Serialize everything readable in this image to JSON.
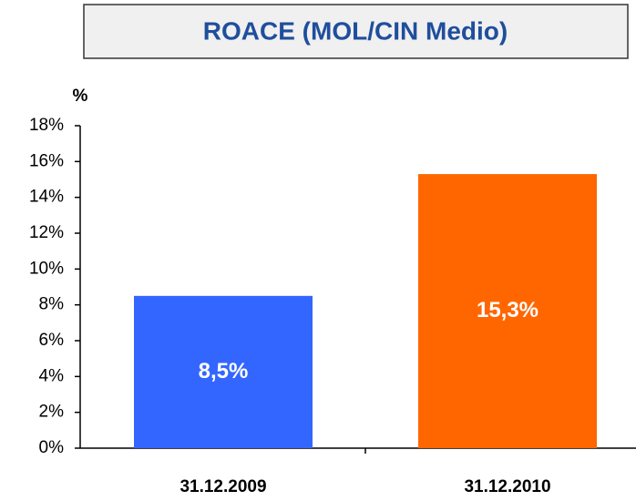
{
  "chart_data": {
    "type": "bar",
    "title": "ROACE (MOL/CIN Medio)",
    "y_label": "%",
    "categories": [
      "31.12.2009",
      "31.12.2010"
    ],
    "values": [
      8.5,
      15.3
    ],
    "value_labels": [
      "8,5%",
      "15,3%"
    ],
    "colors": [
      "#3366ff",
      "#ff6600"
    ],
    "ylim": [
      0,
      18
    ],
    "yticks": [
      {
        "value": 0,
        "label": "0%"
      },
      {
        "value": 2,
        "label": "2%"
      },
      {
        "value": 4,
        "label": "4%"
      },
      {
        "value": 6,
        "label": "6%"
      },
      {
        "value": 8,
        "label": "8%"
      },
      {
        "value": 10,
        "label": "10%"
      },
      {
        "value": 12,
        "label": "12%"
      },
      {
        "value": 14,
        "label": "14%"
      },
      {
        "value": 16,
        "label": "16%"
      },
      {
        "value": 18,
        "label": "18%"
      }
    ]
  }
}
